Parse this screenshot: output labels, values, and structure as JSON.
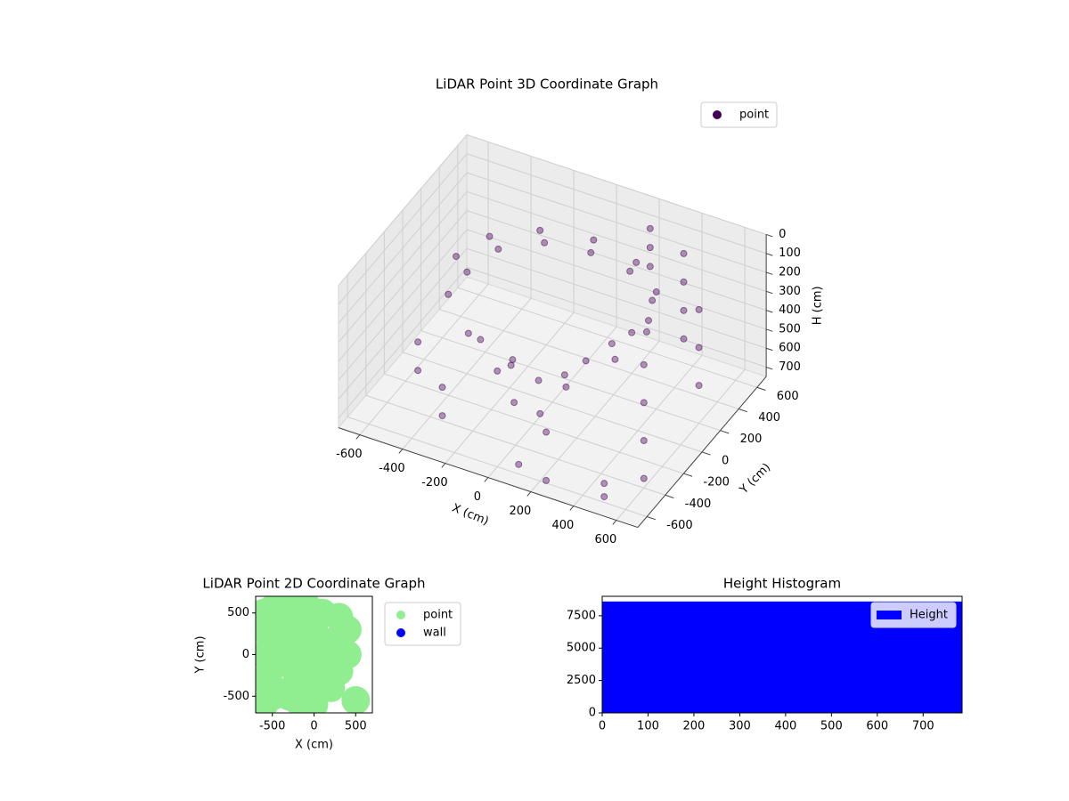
{
  "chart_data": [
    {
      "type": "scatter3d",
      "title": "LiDAR Point 3D Coordinate Graph",
      "xlabel": "X (cm)",
      "ylabel": "Y (cm)",
      "zlabel": "H (cm)",
      "xlim": [
        -700,
        700
      ],
      "ylim": [
        -700,
        700
      ],
      "zlim": [
        750,
        0
      ],
      "zinverted": true,
      "xticks": [
        -600,
        -400,
        -200,
        0,
        200,
        400,
        600
      ],
      "yticks": [
        -600,
        -400,
        -200,
        0,
        200,
        400,
        600
      ],
      "zticks": [
        0,
        100,
        200,
        300,
        400,
        500,
        600,
        700
      ],
      "grid": true,
      "legend": "upper right",
      "series": [
        {
          "name": "point",
          "color": "#440154",
          "x": [
            450,
            390,
            225,
            0,
            -225,
            -390,
            -450,
            -390,
            -225,
            0,
            225,
            390,
            420,
            360,
            200,
            0,
            -200,
            -360,
            -420,
            -100,
            0,
            50,
            100,
            150,
            200,
            300,
            350,
            -50,
            -150,
            -250,
            600,
            600,
            600,
            600,
            600,
            600,
            600,
            400,
            400,
            400,
            400,
            200,
            200,
            200,
            -500,
            -500,
            -300,
            -300,
            100,
            250,
            500,
            500
          ],
          "y": [
            0,
            225,
            390,
            450,
            390,
            225,
            0,
            -225,
            -390,
            -450,
            -390,
            -225,
            50,
            250,
            380,
            420,
            380,
            250,
            50,
            -200,
            -150,
            -250,
            -300,
            -200,
            -100,
            -50,
            50,
            -300,
            -250,
            -200,
            -400,
            -400,
            -400,
            -400,
            200,
            200,
            200,
            500,
            500,
            500,
            500,
            600,
            600,
            600,
            -300,
            -300,
            -500,
            -500,
            -600,
            -650,
            -600,
            -600
          ],
          "z": [
            150,
            150,
            150,
            150,
            150,
            150,
            150,
            200,
            250,
            300,
            300,
            250,
            250,
            220,
            200,
            200,
            200,
            220,
            250,
            450,
            550,
            650,
            700,
            500,
            400,
            300,
            280,
            600,
            500,
            400,
            100,
            300,
            500,
            700,
            150,
            350,
            550,
            100,
            250,
            400,
            550,
            100,
            200,
            300,
            450,
            600,
            500,
            650,
            700,
            700,
            650,
            720
          ]
        }
      ]
    },
    {
      "type": "scatter",
      "title": "LiDAR Point 2D Coordinate Graph",
      "xlabel": "X (cm)",
      "ylabel": "Y (cm)",
      "xlim": [
        -700,
        700
      ],
      "ylim": [
        -700,
        700
      ],
      "xticks": [
        -500,
        0,
        500
      ],
      "yticks": [
        -500,
        0,
        500
      ],
      "legend": "outside right",
      "series": [
        {
          "name": "point",
          "color": "#90ee90",
          "x": [
            -600,
            -600,
            -600,
            -500,
            -500,
            -500,
            -400,
            -400,
            -400,
            -300,
            -300,
            -300,
            -200,
            -200,
            -200,
            -100,
            -100,
            -100,
            0,
            0,
            0,
            100,
            100,
            200,
            200,
            300,
            300,
            400,
            400,
            -600,
            -500,
            -600,
            500,
            300,
            -300,
            -100,
            100,
            0
          ],
          "y": [
            -600,
            -300,
            0,
            -500,
            -150,
            200,
            -450,
            0,
            400,
            -500,
            -100,
            300,
            -550,
            -250,
            150,
            -500,
            0,
            450,
            -450,
            -100,
            300,
            -300,
            100,
            -400,
            0,
            -200,
            200,
            0,
            300,
            500,
            550,
            300,
            -550,
            450,
            600,
            600,
            500,
            -600
          ],
          "size": 16
        },
        {
          "name": "wall",
          "color": "#0000ff",
          "x": [],
          "y": [],
          "size": 6
        }
      ]
    },
    {
      "type": "histogram",
      "title": "Height Histogram",
      "bins": [
        0,
        785
      ],
      "xlim": [
        0,
        785
      ],
      "ylim": [
        0,
        9000
      ],
      "xticks": [
        0,
        100,
        200,
        300,
        400,
        500,
        600,
        700
      ],
      "yticks": [
        0,
        2500,
        5000,
        7500
      ],
      "legend": "upper right",
      "series": [
        {
          "name": "Height",
          "color": "#0000ff",
          "values": [
            8600
          ]
        }
      ]
    }
  ]
}
